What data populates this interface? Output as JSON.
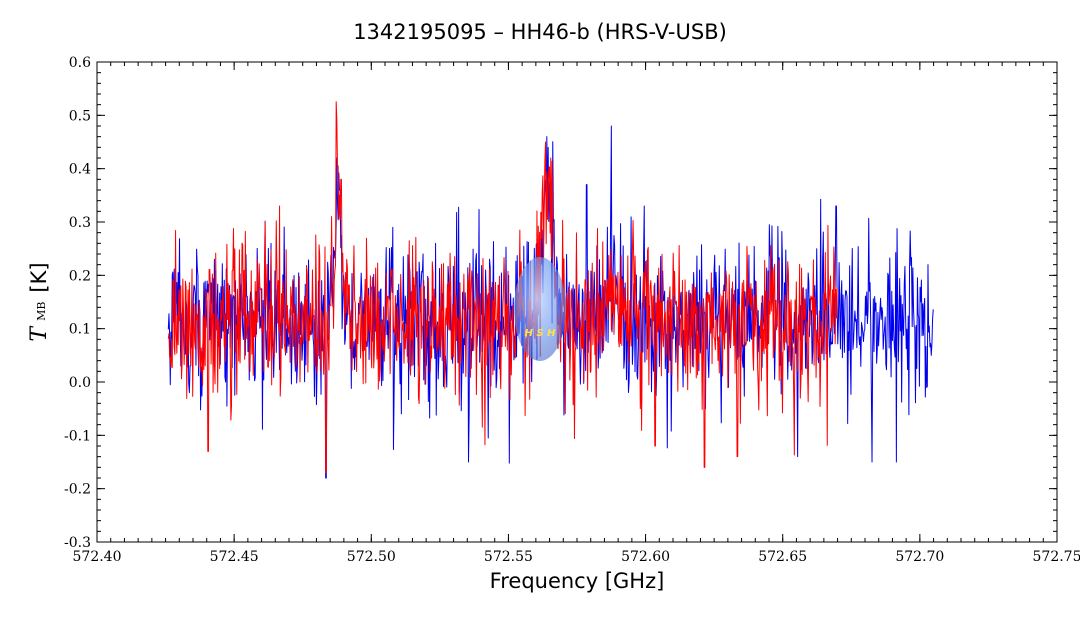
{
  "chart_data": {
    "type": "line",
    "title": "1342195095 – HH46-b (HRS-V-USB)",
    "xlabel": "Frequency [GHz]",
    "ylabel": {
      "symbol": "T",
      "subscript": "MB",
      "unit": "[K]"
    },
    "xlim": [
      572.4,
      572.75
    ],
    "ylim": [
      -0.3,
      0.6
    ],
    "x_ticks": [
      "572.40",
      "572.45",
      "572.50",
      "572.55",
      "572.60",
      "572.65",
      "572.70",
      "572.75"
    ],
    "y_ticks": [
      "-0.3",
      "-0.2",
      "-0.1",
      "0.0",
      "0.1",
      "0.2",
      "0.3",
      "0.4",
      "0.5",
      "0.6"
    ],
    "grid": false,
    "legend": "none",
    "watermark": "HSH",
    "colors": {
      "series1": "#0000ee",
      "series2": "#ff0000",
      "axes": "#000000"
    },
    "series": [
      {
        "color": "#0000ee",
        "x_start": 572.426,
        "x_end": 572.705,
        "features": [
          [
            572.4835,
            -0.18
          ],
          [
            572.4875,
            0.42
          ],
          [
            572.4885,
            0.36
          ],
          [
            572.5645,
            0.44
          ],
          [
            572.5875,
            0.48
          ],
          [
            572.5785,
            0.37
          ],
          [
            572.5995,
            0.33
          ],
          [
            572.6695,
            0.33
          ],
          [
            572.6825,
            -0.15
          ],
          [
            572.6915,
            -0.15
          ],
          [
            572.6555,
            -0.14
          ],
          [
            572.5355,
            -0.15
          ]
        ]
      },
      {
        "color": "#ff0000",
        "x_start": 572.426,
        "x_end": 572.67,
        "features": [
          [
            572.4835,
            -0.17
          ],
          [
            572.4875,
            0.49
          ],
          [
            572.489,
            0.38
          ],
          [
            572.5635,
            0.45
          ],
          [
            572.5655,
            0.42
          ],
          [
            572.4405,
            -0.13
          ],
          [
            572.6215,
            -0.16
          ],
          [
            572.6335,
            -0.14
          ],
          [
            572.6035,
            -0.12
          ],
          [
            572.4855,
            0.31
          ],
          [
            572.4665,
            0.33
          ]
        ]
      }
    ]
  }
}
